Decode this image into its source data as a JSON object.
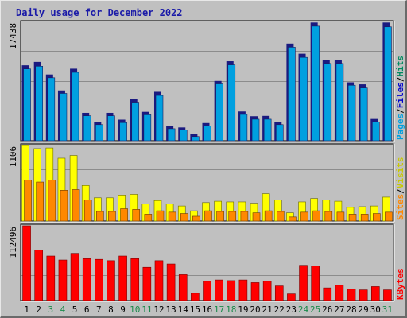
{
  "title": "Daily usage for December 2022",
  "colors": {
    "background": "#c0c0c0",
    "plot_background": "#c0c0c0",
    "gridline": "#8c8c8c",
    "pages": "#00a0e0",
    "files": "#00a0e0",
    "hits": "#00a0e0",
    "hits_back": "#1a1a80",
    "files_back": "#1a1a80",
    "visits": "#ffff00",
    "sites": "#ff8800",
    "kbytes": "#ff0000",
    "weekend_day": "#1a8a4a",
    "weekday": "#000000",
    "pages_label": "#00a0e0",
    "files_label": "#0000cc",
    "hits_label": "#008a60",
    "sites_label": "#ff8800",
    "visits_label": "#c8c800",
    "kbytes_label": "#ff0000",
    "title": "#1a1aa8"
  },
  "chart_data": [
    {
      "type": "bar",
      "name": "hits-files-pages",
      "axis_max_label": "17438",
      "legend": [
        {
          "label": "Pages",
          "color": "#00a0e0"
        },
        {
          "label": "/",
          "color": "#000000"
        },
        {
          "label": "Files",
          "color": "#0000cc"
        },
        {
          "label": "/",
          "color": "#000000"
        },
        {
          "label": "Hits",
          "color": "#008a60"
        }
      ],
      "ylim": [
        0,
        17438
      ],
      "categories": [
        "1",
        "2",
        "3",
        "4",
        "5",
        "6",
        "7",
        "8",
        "9",
        "10",
        "11",
        "12",
        "13",
        "14",
        "15",
        "16",
        "17",
        "18",
        "19",
        "20",
        "21",
        "22",
        "23",
        "24",
        "25",
        "26",
        "27",
        "28",
        "29",
        "30",
        "31"
      ],
      "series": [
        {
          "name": "Hits",
          "values": [
            11100,
            11600,
            9750,
            7400,
            10600,
            4100,
            2800,
            4100,
            3100,
            6100,
            4250,
            7200,
            2150,
            1950,
            950,
            2600,
            8800,
            11700,
            4300,
            3600,
            3650,
            2750,
            14300,
            12800,
            17400,
            11900,
            11900,
            8600,
            8300,
            3200,
            17400
          ]
        },
        {
          "name": "Files",
          "values": [
            10800,
            11200,
            9500,
            7200,
            10300,
            3900,
            2600,
            3900,
            2900,
            5900,
            4050,
            6900,
            2000,
            1800,
            850,
            2400,
            8600,
            11400,
            4100,
            3400,
            3400,
            2600,
            14000,
            12500,
            17100,
            11600,
            11600,
            8400,
            8000,
            3000,
            17000
          ]
        }
      ]
    },
    {
      "type": "bar",
      "name": "visits-sites",
      "axis_max_label": "1106",
      "legend": [
        {
          "label": "Sites",
          "color": "#ff8800"
        },
        {
          "label": "/",
          "color": "#000000"
        },
        {
          "label": "Visits",
          "color": "#c8c800"
        }
      ],
      "ylim": [
        0,
        1106
      ],
      "categories": [
        "1",
        "2",
        "3",
        "4",
        "5",
        "6",
        "7",
        "8",
        "9",
        "10",
        "11",
        "12",
        "13",
        "14",
        "15",
        "16",
        "17",
        "18",
        "19",
        "20",
        "21",
        "22",
        "23",
        "24",
        "25",
        "26",
        "27",
        "28",
        "29",
        "30",
        "31"
      ],
      "series": [
        {
          "name": "Visits",
          "values": [
            1106,
            1060,
            1070,
            920,
            960,
            520,
            340,
            340,
            380,
            390,
            250,
            300,
            250,
            220,
            150,
            270,
            290,
            280,
            280,
            260,
            400,
            310,
            120,
            280,
            330,
            310,
            290,
            200,
            210,
            220,
            350
          ]
        },
        {
          "name": "Sites",
          "values": [
            600,
            570,
            600,
            450,
            460,
            310,
            140,
            140,
            180,
            170,
            100,
            150,
            130,
            110,
            70,
            150,
            140,
            140,
            140,
            120,
            150,
            140,
            60,
            130,
            150,
            140,
            130,
            100,
            100,
            110,
            130
          ]
        }
      ]
    },
    {
      "type": "bar",
      "name": "kbytes",
      "axis_max_label": "112496",
      "legend": [
        {
          "label": "KBytes",
          "color": "#ff0000"
        }
      ],
      "ylim": [
        0,
        112496
      ],
      "categories": [
        "1",
        "2",
        "3",
        "4",
        "5",
        "6",
        "7",
        "8",
        "9",
        "10",
        "11",
        "12",
        "13",
        "14",
        "15",
        "16",
        "17",
        "18",
        "19",
        "20",
        "21",
        "22",
        "23",
        "24",
        "25",
        "26",
        "27",
        "28",
        "29",
        "30",
        "31"
      ],
      "series": [
        {
          "name": "KBytes",
          "values": [
            112496,
            76000,
            67000,
            61000,
            71000,
            63000,
            62000,
            60000,
            67000,
            63000,
            50000,
            60000,
            55000,
            39000,
            11000,
            29000,
            31000,
            30000,
            31000,
            27000,
            29000,
            22000,
            10000,
            53000,
            52000,
            19000,
            23000,
            17000,
            16000,
            21000,
            16000
          ]
        }
      ]
    }
  ],
  "xaxis": {
    "labels": [
      "1",
      "2",
      "3",
      "4",
      "5",
      "6",
      "7",
      "8",
      "9",
      "10",
      "11",
      "12",
      "13",
      "14",
      "15",
      "16",
      "17",
      "18",
      "19",
      "20",
      "21",
      "22",
      "23",
      "24",
      "25",
      "26",
      "27",
      "28",
      "29",
      "30",
      "31"
    ],
    "weekend": [
      "3",
      "4",
      "10",
      "11",
      "17",
      "18",
      "24",
      "25",
      "31"
    ]
  }
}
